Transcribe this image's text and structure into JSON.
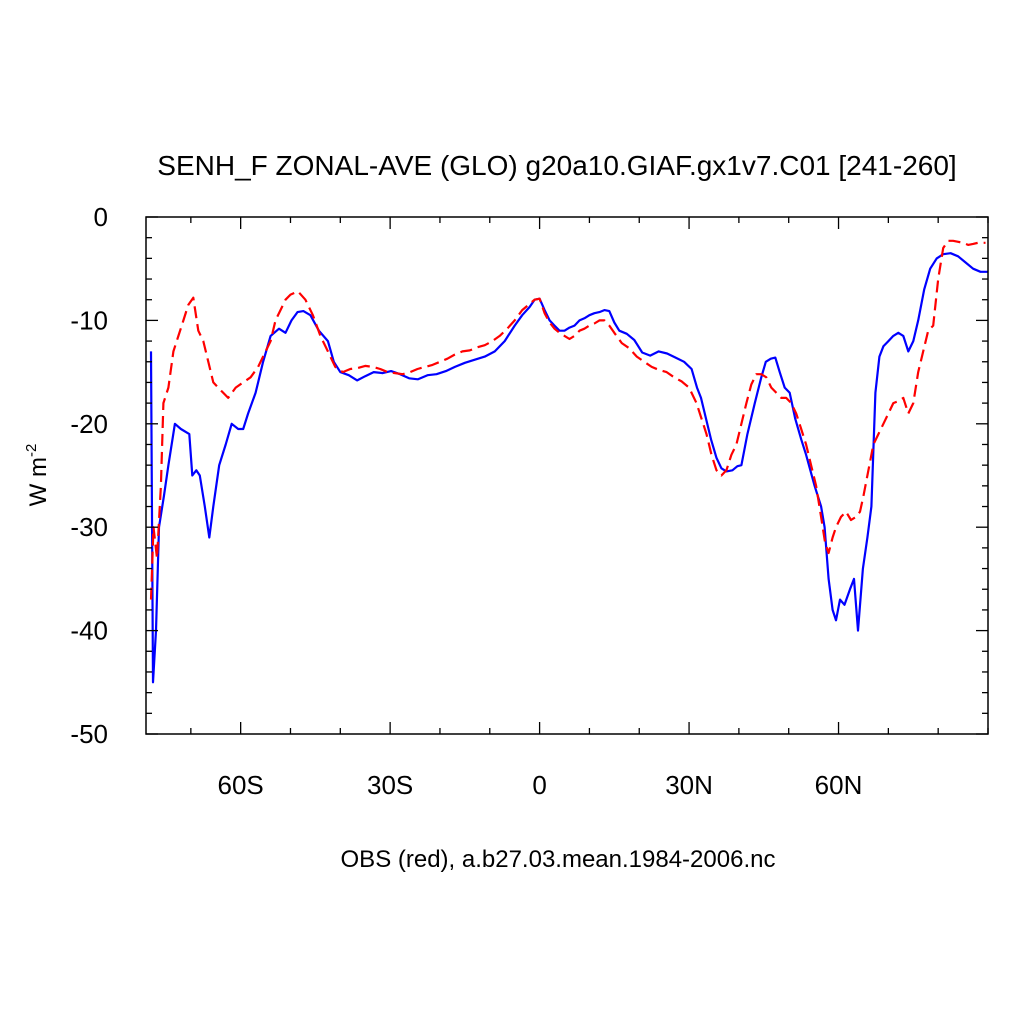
{
  "chart_data": {
    "type": "line",
    "title": "SENH_F ZONAL-AVE (GLO) g20a10.GIAF.gx1v7.C01 [241-260]",
    "ylabel": {
      "base": "W m",
      "exponent": "-2"
    },
    "xlabel": "OBS (red), a.b27.03.mean.1984-2006.nc",
    "xlim": [
      -79,
      90
    ],
    "ylim": [
      -50,
      0
    ],
    "grid": false,
    "x_ticks": [
      {
        "value": -60,
        "label": "60S"
      },
      {
        "value": -30,
        "label": "30S"
      },
      {
        "value": 0,
        "label": "0"
      },
      {
        "value": 30,
        "label": "30N"
      },
      {
        "value": 60,
        "label": "60N"
      }
    ],
    "y_ticks": [
      {
        "value": 0,
        "label": "0"
      },
      {
        "value": -10,
        "label": "-10"
      },
      {
        "value": -20,
        "label": "-20"
      },
      {
        "value": -30,
        "label": "-30"
      },
      {
        "value": -40,
        "label": "-40"
      },
      {
        "value": -50,
        "label": "-50"
      }
    ],
    "series": [
      {
        "color": "#0000ff",
        "dash": "solid",
        "points": [
          [
            -78,
            -13
          ],
          [
            -77.6,
            -45
          ],
          [
            -77,
            -40
          ],
          [
            -76.4,
            -30
          ],
          [
            -75.4,
            -27
          ],
          [
            -74.5,
            -24
          ],
          [
            -73.2,
            -20
          ],
          [
            -72,
            -20.5
          ],
          [
            -70.3,
            -21
          ],
          [
            -69.7,
            -25
          ],
          [
            -68.9,
            -24.5
          ],
          [
            -68.2,
            -25
          ],
          [
            -67.2,
            -28
          ],
          [
            -66.3,
            -31
          ],
          [
            -65.5,
            -28
          ],
          [
            -64.3,
            -24
          ],
          [
            -63,
            -22
          ],
          [
            -61.8,
            -20
          ],
          [
            -60.5,
            -20.5
          ],
          [
            -59.5,
            -20.5
          ],
          [
            -58.5,
            -19
          ],
          [
            -57,
            -17
          ],
          [
            -55.5,
            -14
          ],
          [
            -54,
            -11.5
          ],
          [
            -52.3,
            -10.8
          ],
          [
            -51,
            -11.2
          ],
          [
            -49.8,
            -10
          ],
          [
            -48.6,
            -9.2
          ],
          [
            -47.4,
            -9.1
          ],
          [
            -46,
            -9.5
          ],
          [
            -44.3,
            -11
          ],
          [
            -42.5,
            -12
          ],
          [
            -41.3,
            -14
          ],
          [
            -40,
            -15
          ],
          [
            -38.3,
            -15.3
          ],
          [
            -36.6,
            -15.8
          ],
          [
            -35,
            -15.4
          ],
          [
            -33.3,
            -15
          ],
          [
            -31.5,
            -15.1
          ],
          [
            -29.8,
            -14.9
          ],
          [
            -28,
            -15.2
          ],
          [
            -26.2,
            -15.6
          ],
          [
            -24.4,
            -15.7
          ],
          [
            -22.5,
            -15.3
          ],
          [
            -20.7,
            -15.2
          ],
          [
            -18.8,
            -14.9
          ],
          [
            -17,
            -14.5
          ],
          [
            -15,
            -14.1
          ],
          [
            -13,
            -13.8
          ],
          [
            -11,
            -13.5
          ],
          [
            -9,
            -13
          ],
          [
            -7,
            -12
          ],
          [
            -5,
            -10.5
          ],
          [
            -3.5,
            -9.5
          ],
          [
            -2,
            -8.7
          ],
          [
            -1,
            -8
          ],
          [
            0,
            -7.9
          ],
          [
            1,
            -9
          ],
          [
            2,
            -10
          ],
          [
            3,
            -10.5
          ],
          [
            4,
            -11
          ],
          [
            5,
            -11
          ],
          [
            6,
            -10.7
          ],
          [
            7,
            -10.5
          ],
          [
            8,
            -10
          ],
          [
            9,
            -9.8
          ],
          [
            10,
            -9.5
          ],
          [
            11,
            -9.3
          ],
          [
            12,
            -9.2
          ],
          [
            13,
            -9
          ],
          [
            14,
            -9.1
          ],
          [
            15,
            -10.2
          ],
          [
            16,
            -11
          ],
          [
            17.5,
            -11.3
          ],
          [
            19,
            -11.9
          ],
          [
            20.6,
            -13.1
          ],
          [
            22.2,
            -13.4
          ],
          [
            23.9,
            -13
          ],
          [
            25.6,
            -13.2
          ],
          [
            27.3,
            -13.6
          ],
          [
            29,
            -14
          ],
          [
            30.5,
            -14.7
          ],
          [
            31.6,
            -16.5
          ],
          [
            32.4,
            -17.5
          ],
          [
            33.4,
            -19.5
          ],
          [
            34.4,
            -21.5
          ],
          [
            35.5,
            -23.3
          ],
          [
            36.5,
            -24.3
          ],
          [
            37.5,
            -24.6
          ],
          [
            38.7,
            -24.5
          ],
          [
            39.7,
            -24.1
          ],
          [
            40.5,
            -24
          ],
          [
            41.7,
            -21
          ],
          [
            43.2,
            -18
          ],
          [
            44.5,
            -15.5
          ],
          [
            45.4,
            -14
          ],
          [
            46.4,
            -13.7
          ],
          [
            47.3,
            -13.6
          ],
          [
            48.2,
            -15
          ],
          [
            49.2,
            -16.5
          ],
          [
            50.2,
            -17
          ],
          [
            51.3,
            -19.5
          ],
          [
            52.5,
            -21.5
          ],
          [
            53.5,
            -23
          ],
          [
            55.2,
            -26
          ],
          [
            56.5,
            -28
          ],
          [
            57.2,
            -30
          ],
          [
            58,
            -35
          ],
          [
            58.8,
            -38
          ],
          [
            59.5,
            -39
          ],
          [
            60.3,
            -37
          ],
          [
            61.2,
            -37.5
          ],
          [
            62.3,
            -36
          ],
          [
            63.1,
            -35
          ],
          [
            63.9,
            -40
          ],
          [
            64.9,
            -34
          ],
          [
            65.8,
            -31
          ],
          [
            66.6,
            -28
          ],
          [
            67.4,
            -17
          ],
          [
            68.2,
            -13.5
          ],
          [
            69,
            -12.5
          ],
          [
            70,
            -12
          ],
          [
            71,
            -11.5
          ],
          [
            72,
            -11.2
          ],
          [
            73,
            -11.5
          ],
          [
            74,
            -13
          ],
          [
            75,
            -12
          ],
          [
            76,
            -10
          ],
          [
            77.2,
            -7
          ],
          [
            78.4,
            -5
          ],
          [
            79.7,
            -4
          ],
          [
            81,
            -3.6
          ],
          [
            82.5,
            -3.5
          ],
          [
            84,
            -3.8
          ],
          [
            85.5,
            -4.4
          ],
          [
            87,
            -5
          ],
          [
            88.5,
            -5.3
          ],
          [
            90,
            -5.3
          ]
        ]
      },
      {
        "color": "#ff0000",
        "dash": "dashed",
        "points": [
          [
            -78,
            -37
          ],
          [
            -77.5,
            -30
          ],
          [
            -76.8,
            -33
          ],
          [
            -76,
            -26
          ],
          [
            -75.5,
            -18
          ],
          [
            -74.5,
            -16.5
          ],
          [
            -73.5,
            -13
          ],
          [
            -72.5,
            -11.5
          ],
          [
            -71.5,
            -10
          ],
          [
            -70.5,
            -8.5
          ],
          [
            -69.5,
            -7.8
          ],
          [
            -68.5,
            -11
          ],
          [
            -67.5,
            -12
          ],
          [
            -66.5,
            -14
          ],
          [
            -65.5,
            -16
          ],
          [
            -64.5,
            -16.5
          ],
          [
            -63.5,
            -17
          ],
          [
            -62.5,
            -17.5
          ],
          [
            -61,
            -16.5
          ],
          [
            -59.5,
            -16
          ],
          [
            -58,
            -15.5
          ],
          [
            -56.5,
            -14.5
          ],
          [
            -55,
            -13
          ],
          [
            -54,
            -12
          ],
          [
            -53,
            -10
          ],
          [
            -52,
            -9
          ],
          [
            -51,
            -8
          ],
          [
            -50,
            -7.5
          ],
          [
            -48.5,
            -7.2
          ],
          [
            -47,
            -8
          ],
          [
            -45.5,
            -9.5
          ],
          [
            -44,
            -11.5
          ],
          [
            -42.5,
            -13
          ],
          [
            -41,
            -14.5
          ],
          [
            -39.5,
            -15
          ],
          [
            -38,
            -14.7
          ],
          [
            -36.5,
            -14.6
          ],
          [
            -35,
            -14.4
          ],
          [
            -33.5,
            -14.5
          ],
          [
            -32,
            -14.7
          ],
          [
            -30.5,
            -15
          ],
          [
            -29,
            -15.1
          ],
          [
            -27.5,
            -15.2
          ],
          [
            -26,
            -15
          ],
          [
            -24.5,
            -14.7
          ],
          [
            -23,
            -14.5
          ],
          [
            -21.5,
            -14.3
          ],
          [
            -20,
            -14
          ],
          [
            -18.5,
            -13.7
          ],
          [
            -17,
            -13.3
          ],
          [
            -15.5,
            -13
          ],
          [
            -14,
            -12.9
          ],
          [
            -12.5,
            -12.6
          ],
          [
            -11,
            -12.4
          ],
          [
            -9.5,
            -12
          ],
          [
            -8,
            -11.5
          ],
          [
            -6.5,
            -10.8
          ],
          [
            -5,
            -10
          ],
          [
            -3.5,
            -9
          ],
          [
            -2,
            -8.4
          ],
          [
            -1,
            -8
          ],
          [
            0,
            -7.9
          ],
          [
            1,
            -9.3
          ],
          [
            2,
            -10.2
          ],
          [
            3,
            -10.8
          ],
          [
            4,
            -11.2
          ],
          [
            5,
            -11.5
          ],
          [
            6,
            -11.8
          ],
          [
            7,
            -11.5
          ],
          [
            8,
            -11
          ],
          [
            9,
            -10.8
          ],
          [
            10,
            -10.5
          ],
          [
            11,
            -10.3
          ],
          [
            12,
            -10
          ],
          [
            13,
            -10
          ],
          [
            14,
            -10.5
          ],
          [
            15,
            -11.2
          ],
          [
            16.5,
            -12.2
          ],
          [
            18,
            -12.7
          ],
          [
            19.5,
            -13.5
          ],
          [
            21,
            -14
          ],
          [
            22.5,
            -14.5
          ],
          [
            24,
            -14.8
          ],
          [
            25.5,
            -15
          ],
          [
            27,
            -15.5
          ],
          [
            28.5,
            -15.9
          ],
          [
            30,
            -16.5
          ],
          [
            31.5,
            -18
          ],
          [
            32.5,
            -19.5
          ],
          [
            33.5,
            -21
          ],
          [
            34.5,
            -23
          ],
          [
            35.5,
            -24.5
          ],
          [
            36.5,
            -25
          ],
          [
            37.5,
            -24.5
          ],
          [
            38.5,
            -23
          ],
          [
            39.5,
            -22
          ],
          [
            40.5,
            -20
          ],
          [
            41.5,
            -18
          ],
          [
            42.5,
            -16.2
          ],
          [
            43.5,
            -15.2
          ],
          [
            44.5,
            -15.2
          ],
          [
            45.5,
            -15.5
          ],
          [
            46.5,
            -16.5
          ],
          [
            47.5,
            -17
          ],
          [
            48.5,
            -17.5
          ],
          [
            49.5,
            -17.5
          ],
          [
            50.5,
            -18
          ],
          [
            51.5,
            -19
          ],
          [
            52.5,
            -20.5
          ],
          [
            53.5,
            -22
          ],
          [
            54.5,
            -24
          ],
          [
            55.5,
            -26
          ],
          [
            56.5,
            -29
          ],
          [
            57.3,
            -31.5
          ],
          [
            58,
            -32.5
          ],
          [
            58.8,
            -31
          ],
          [
            59.5,
            -30
          ],
          [
            60.5,
            -29
          ],
          [
            61.5,
            -28.5
          ],
          [
            62.5,
            -29.3
          ],
          [
            63.5,
            -29
          ],
          [
            64.3,
            -28.5
          ],
          [
            65,
            -27
          ],
          [
            66,
            -24.5
          ],
          [
            67,
            -22
          ],
          [
            68,
            -21
          ],
          [
            69,
            -20
          ],
          [
            70,
            -19
          ],
          [
            71,
            -18
          ],
          [
            72,
            -17.8
          ],
          [
            73,
            -17.5
          ],
          [
            74,
            -19
          ],
          [
            75,
            -18
          ],
          [
            76,
            -15
          ],
          [
            77,
            -13
          ],
          [
            78,
            -11
          ],
          [
            79,
            -10.5
          ],
          [
            80,
            -6
          ],
          [
            81,
            -3
          ],
          [
            82,
            -2.3
          ],
          [
            83,
            -2.3
          ],
          [
            84,
            -2.4
          ],
          [
            85,
            -2.5
          ],
          [
            86,
            -2.7
          ],
          [
            87,
            -2.6
          ],
          [
            88,
            -2.5
          ],
          [
            89.5,
            -2.5
          ]
        ]
      }
    ]
  }
}
